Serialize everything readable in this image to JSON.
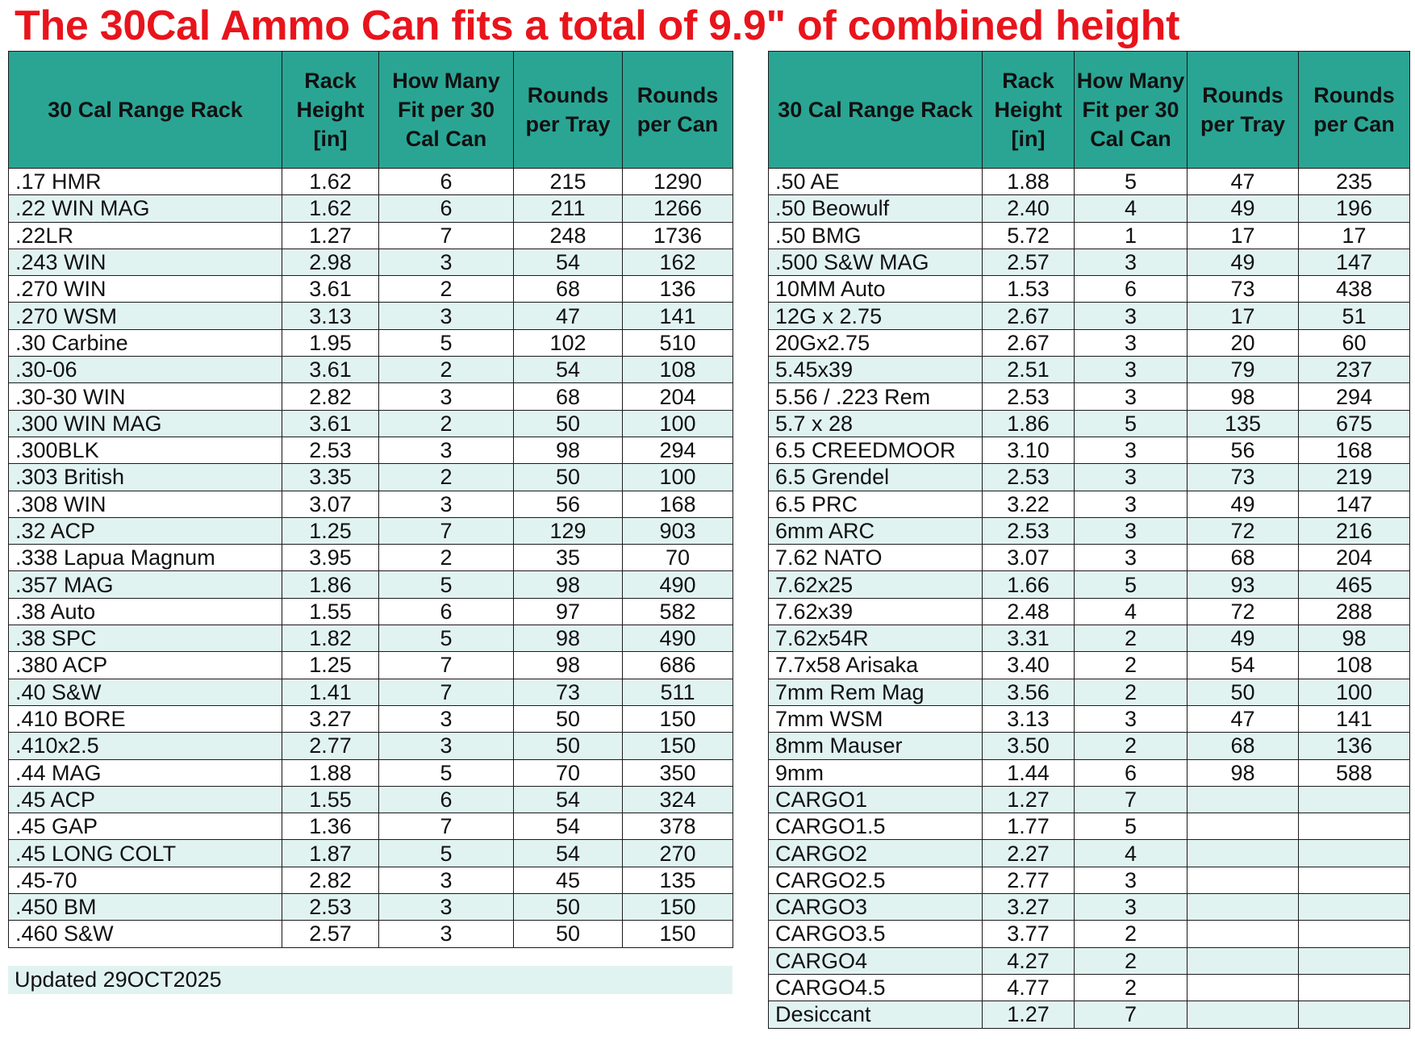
{
  "title": "The 30Cal Ammo Can fits a total of 9.9\" of combined height",
  "updated": "Updated 29OCT2025",
  "left_table": {
    "headers": [
      "30 Cal Range Rack",
      "Rack Height [in]",
      "How Many Fit per 30 Cal Can",
      "Rounds per Tray",
      "Rounds per Can"
    ],
    "rows": [
      [
        ".17 HMR",
        "1.62",
        "6",
        "215",
        "1290"
      ],
      [
        ".22 WIN MAG",
        "1.62",
        "6",
        "211",
        "1266"
      ],
      [
        ".22LR",
        "1.27",
        "7",
        "248",
        "1736"
      ],
      [
        ".243 WIN",
        "2.98",
        "3",
        "54",
        "162"
      ],
      [
        ".270 WIN",
        "3.61",
        "2",
        "68",
        "136"
      ],
      [
        ".270 WSM",
        "3.13",
        "3",
        "47",
        "141"
      ],
      [
        ".30 Carbine",
        "1.95",
        "5",
        "102",
        "510"
      ],
      [
        ".30-06",
        "3.61",
        "2",
        "54",
        "108"
      ],
      [
        ".30-30 WIN",
        "2.82",
        "3",
        "68",
        "204"
      ],
      [
        ".300 WIN MAG",
        "3.61",
        "2",
        "50",
        "100"
      ],
      [
        ".300BLK",
        "2.53",
        "3",
        "98",
        "294"
      ],
      [
        ".303 British",
        "3.35",
        "2",
        "50",
        "100"
      ],
      [
        ".308 WIN",
        "3.07",
        "3",
        "56",
        "168"
      ],
      [
        ".32 ACP",
        "1.25",
        "7",
        "129",
        "903"
      ],
      [
        ".338 Lapua Magnum",
        "3.95",
        "2",
        "35",
        "70"
      ],
      [
        ".357 MAG",
        "1.86",
        "5",
        "98",
        "490"
      ],
      [
        ".38 Auto",
        "1.55",
        "6",
        "97",
        "582"
      ],
      [
        ".38 SPC",
        "1.82",
        "5",
        "98",
        "490"
      ],
      [
        ".380 ACP",
        "1.25",
        "7",
        "98",
        "686"
      ],
      [
        ".40 S&W",
        "1.41",
        "7",
        "73",
        "511"
      ],
      [
        ".410 BORE",
        "3.27",
        "3",
        "50",
        "150"
      ],
      [
        ".410x2.5",
        "2.77",
        "3",
        "50",
        "150"
      ],
      [
        ".44 MAG",
        "1.88",
        "5",
        "70",
        "350"
      ],
      [
        ".45 ACP",
        "1.55",
        "6",
        "54",
        "324"
      ],
      [
        ".45 GAP",
        "1.36",
        "7",
        "54",
        "378"
      ],
      [
        ".45 LONG COLT",
        "1.87",
        "5",
        "54",
        "270"
      ],
      [
        ".45-70",
        "2.82",
        "3",
        "45",
        "135"
      ],
      [
        ".450 BM",
        "2.53",
        "3",
        "50",
        "150"
      ],
      [
        ".460 S&W",
        "2.57",
        "3",
        "50",
        "150"
      ]
    ]
  },
  "right_table": {
    "headers": [
      "30 Cal Range Rack",
      "Rack Height [in]",
      "How Many Fit per 30 Cal Can",
      "Rounds per Tray",
      "Rounds per Can"
    ],
    "rows": [
      [
        ".50 AE",
        "1.88",
        "5",
        "47",
        "235"
      ],
      [
        ".50 Beowulf",
        "2.40",
        "4",
        "49",
        "196"
      ],
      [
        ".50 BMG",
        "5.72",
        "1",
        "17",
        "17"
      ],
      [
        ".500 S&W MAG",
        "2.57",
        "3",
        "49",
        "147"
      ],
      [
        "10MM Auto",
        "1.53",
        "6",
        "73",
        "438"
      ],
      [
        "12G x 2.75",
        "2.67",
        "3",
        "17",
        "51"
      ],
      [
        "20Gx2.75",
        "2.67",
        "3",
        "20",
        "60"
      ],
      [
        "5.45x39",
        "2.51",
        "3",
        "79",
        "237"
      ],
      [
        "5.56 / .223 Rem",
        "2.53",
        "3",
        "98",
        "294"
      ],
      [
        "5.7 x 28",
        "1.86",
        "5",
        "135",
        "675"
      ],
      [
        "6.5 CREEDMOOR",
        "3.10",
        "3",
        "56",
        "168"
      ],
      [
        "6.5 Grendel",
        "2.53",
        "3",
        "73",
        "219"
      ],
      [
        "6.5 PRC",
        "3.22",
        "3",
        "49",
        "147"
      ],
      [
        "6mm ARC",
        "2.53",
        "3",
        "72",
        "216"
      ],
      [
        "7.62 NATO",
        "3.07",
        "3",
        "68",
        "204"
      ],
      [
        "7.62x25",
        "1.66",
        "5",
        "93",
        "465"
      ],
      [
        "7.62x39",
        "2.48",
        "4",
        "72",
        "288"
      ],
      [
        "7.62x54R",
        "3.31",
        "2",
        "49",
        "98"
      ],
      [
        "7.7x58 Arisaka",
        "3.40",
        "2",
        "54",
        "108"
      ],
      [
        "7mm Rem Mag",
        "3.56",
        "2",
        "50",
        "100"
      ],
      [
        "7mm WSM",
        "3.13",
        "3",
        "47",
        "141"
      ],
      [
        "8mm Mauser",
        "3.50",
        "2",
        "68",
        "136"
      ],
      [
        "9mm",
        "1.44",
        "6",
        "98",
        "588"
      ],
      [
        "CARGO1",
        "1.27",
        "7",
        "",
        ""
      ],
      [
        "CARGO1.5",
        "1.77",
        "5",
        "",
        ""
      ],
      [
        "CARGO2",
        "2.27",
        "4",
        "",
        ""
      ],
      [
        "CARGO2.5",
        "2.77",
        "3",
        "",
        ""
      ],
      [
        "CARGO3",
        "3.27",
        "3",
        "",
        ""
      ],
      [
        "CARGO3.5",
        "3.77",
        "2",
        "",
        ""
      ],
      [
        "CARGO4",
        "4.27",
        "2",
        "",
        ""
      ],
      [
        "CARGO4.5",
        "4.77",
        "2",
        "",
        ""
      ],
      [
        "Desiccant",
        "1.27",
        "7",
        "",
        ""
      ]
    ]
  },
  "colors": {
    "title": "#e8141c",
    "header_bg": "#2aa594",
    "row_alt_bg": "#e1f3f1"
  }
}
